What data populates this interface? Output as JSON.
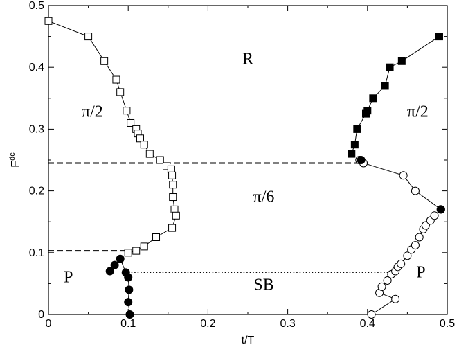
{
  "chart_data": {
    "type": "scatter",
    "xlabel": "t/T",
    "ylabel": "F",
    "ylabel_sup": "dc",
    "xlim": [
      0,
      0.5
    ],
    "ylim": [
      0,
      0.5
    ],
    "xticks": [
      "0",
      "0.1",
      "0.2",
      "0.3",
      "0.4",
      "0.5"
    ],
    "yticks": [
      "0",
      "0.1",
      "0.2",
      "0.3",
      "0.4",
      "0.5"
    ],
    "grid": false,
    "series": [
      {
        "marker": "open-square",
        "connected": true,
        "points": [
          [
            0.0,
            0.475
          ],
          [
            0.05,
            0.45
          ],
          [
            0.07,
            0.41
          ],
          [
            0.085,
            0.38
          ],
          [
            0.09,
            0.36
          ],
          [
            0.098,
            0.33
          ],
          [
            0.103,
            0.31
          ],
          [
            0.11,
            0.3
          ],
          [
            0.112,
            0.293
          ],
          [
            0.115,
            0.285
          ],
          [
            0.12,
            0.275
          ],
          [
            0.127,
            0.26
          ],
          [
            0.14,
            0.25
          ],
          [
            0.148,
            0.24
          ],
          [
            0.154,
            0.235
          ],
          [
            0.155,
            0.225
          ],
          [
            0.156,
            0.21
          ],
          [
            0.156,
            0.19
          ],
          [
            0.158,
            0.17
          ],
          [
            0.16,
            0.16
          ],
          [
            0.155,
            0.14
          ],
          [
            0.135,
            0.125
          ],
          [
            0.12,
            0.11
          ],
          [
            0.11,
            0.103
          ],
          [
            0.1,
            0.1
          ]
        ]
      },
      {
        "marker": "filled-square",
        "connected": true,
        "points": [
          [
            0.38,
            0.26
          ],
          [
            0.384,
            0.275
          ],
          [
            0.387,
            0.3
          ],
          [
            0.398,
            0.325
          ],
          [
            0.4,
            0.33
          ],
          [
            0.407,
            0.35
          ],
          [
            0.422,
            0.37
          ],
          [
            0.428,
            0.4
          ],
          [
            0.443,
            0.41
          ],
          [
            0.49,
            0.45
          ]
        ]
      },
      {
        "marker": "filled-circle",
        "connected": true,
        "points": [
          [
            0.077,
            0.07
          ],
          [
            0.083,
            0.08
          ],
          [
            0.09,
            0.09
          ],
          [
            0.097,
            0.068
          ],
          [
            0.1,
            0.06
          ],
          [
            0.101,
            0.04
          ],
          [
            0.1,
            0.02
          ],
          [
            0.102,
            0.0
          ]
        ]
      },
      {
        "marker": "open-circle",
        "connected": true,
        "points": [
          [
            0.39,
            0.25
          ],
          [
            0.395,
            0.245
          ],
          [
            0.445,
            0.225
          ],
          [
            0.46,
            0.2
          ],
          [
            0.492,
            0.17
          ]
        ]
      },
      {
        "marker": "open-circle",
        "connected": true,
        "points": [
          [
            0.405,
            0.0
          ],
          [
            0.435,
            0.025
          ],
          [
            0.415,
            0.035
          ],
          [
            0.418,
            0.045
          ],
          [
            0.425,
            0.055
          ],
          [
            0.43,
            0.065
          ],
          [
            0.435,
            0.07
          ],
          [
            0.438,
            0.077
          ],
          [
            0.442,
            0.082
          ],
          [
            0.45,
            0.095
          ],
          [
            0.455,
            0.105
          ],
          [
            0.46,
            0.112
          ],
          [
            0.465,
            0.125
          ],
          [
            0.47,
            0.138
          ],
          [
            0.473,
            0.144
          ],
          [
            0.479,
            0.152
          ],
          [
            0.484,
            0.16
          ],
          [
            0.492,
            0.17
          ]
        ]
      },
      {
        "marker": "filled-circle",
        "connected": false,
        "points": [
          [
            0.392,
            0.25
          ],
          [
            0.492,
            0.17
          ]
        ]
      }
    ],
    "reference_lines": [
      {
        "style": "dashed",
        "from": [
          0.0,
          0.245
        ],
        "to": [
          0.39,
          0.245
        ]
      },
      {
        "style": "dashed",
        "from": [
          0.0,
          0.103
        ],
        "to": [
          0.1,
          0.103
        ]
      },
      {
        "style": "dotted",
        "from": [
          0.1,
          0.068
        ],
        "to": [
          0.43,
          0.068
        ]
      }
    ],
    "annotations": [
      {
        "text": "R",
        "x": 0.25,
        "y": 0.405
      },
      {
        "text": "π/2",
        "x": 0.055,
        "y": 0.32
      },
      {
        "text": "π/2",
        "x": 0.463,
        "y": 0.32
      },
      {
        "text": "π/6",
        "x": 0.27,
        "y": 0.182
      },
      {
        "text": "P",
        "x": 0.025,
        "y": 0.052
      },
      {
        "text": "SB",
        "x": 0.27,
        "y": 0.04
      },
      {
        "text": "P",
        "x": 0.467,
        "y": 0.06
      }
    ]
  }
}
